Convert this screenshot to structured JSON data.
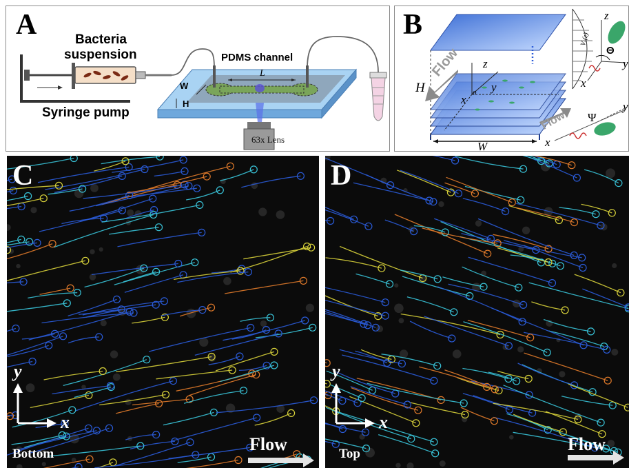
{
  "panel_a": {
    "letter": "A",
    "bacteria_line1": "Bacteria",
    "bacteria_line2": "suspension",
    "pump_label": "Syringe pump",
    "channel_label": "PDMS channel",
    "dim_l": "L",
    "dim_w": "W",
    "dim_h": "H",
    "lens_label": "63x Lens"
  },
  "panel_b": {
    "letter": "B",
    "flow_label": "Flow",
    "flow_label_2": "Flow",
    "height_label": "H",
    "width_label": "W",
    "axis_z": "z",
    "axis_y": "y",
    "axis_x": "x",
    "origin": "o",
    "velocity_label": "Vₓ(z)",
    "theta": "Θ",
    "psi": "Ψ",
    "inset_z": "z",
    "inset_y": "y",
    "inset_x": "x",
    "inset2_y": "y",
    "inset2_x": "x"
  },
  "panel_c": {
    "letter": "C",
    "axis_y": "y",
    "axis_x": "x",
    "position_label": "Bottom",
    "flow_label": "Flow"
  },
  "panel_d": {
    "letter": "D",
    "axis_y": "y",
    "axis_x": "x",
    "position_label": "Top",
    "flow_label": "Flow"
  },
  "colors": {
    "plate_blue": "#6f9de8",
    "trajectory_blue": "#2a5bd8",
    "trajectory_cyan": "#39c3d8",
    "trajectory_yellow": "#d8d23a",
    "trajectory_orange": "#e07a2a",
    "flow_arrow": "#d9d9d9"
  }
}
